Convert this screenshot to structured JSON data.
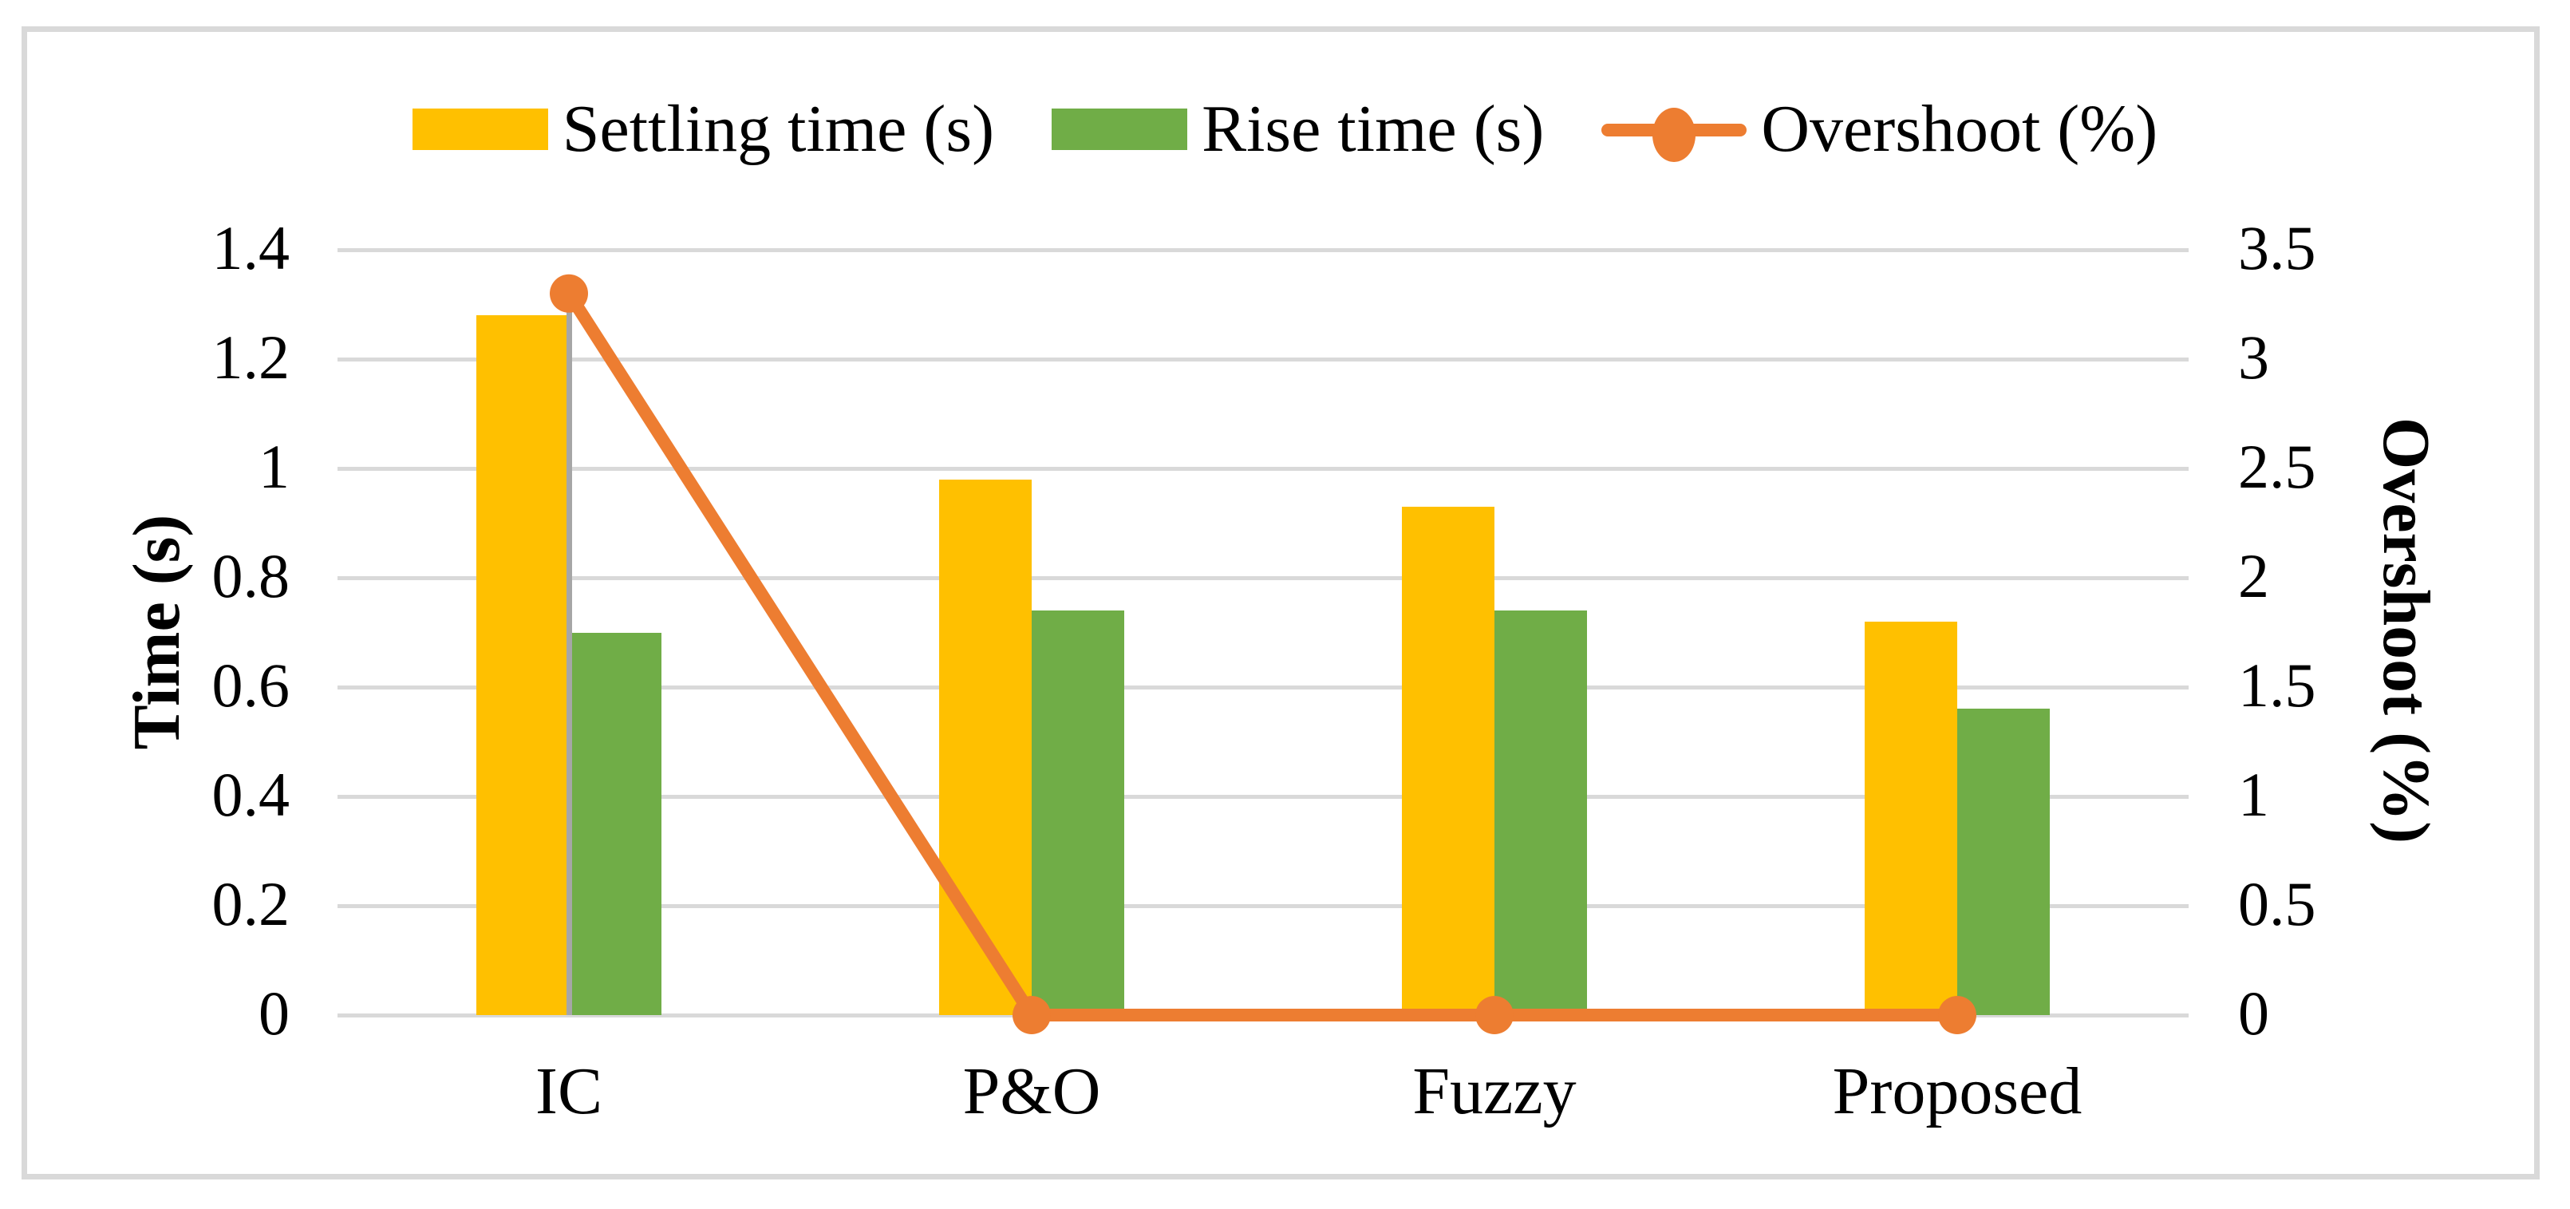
{
  "chart_data": {
    "type": "bar+line",
    "categories": [
      "IC",
      "P&O",
      "Fuzzy",
      "Proposed"
    ],
    "series": [
      {
        "name": "Settling time (s)",
        "type": "bar",
        "axis": "left",
        "color": "#FFC000",
        "values": [
          1.28,
          0.98,
          0.93,
          0.72
        ]
      },
      {
        "name": "Rise time (s)",
        "type": "bar",
        "axis": "left",
        "color": "#70AD47",
        "values": [
          0.7,
          0.74,
          0.74,
          0.56
        ]
      },
      {
        "name": "Overshoot (%)",
        "type": "line",
        "axis": "right",
        "color": "#ED7D31",
        "values": [
          3.3,
          0,
          0,
          0
        ]
      }
    ],
    "left_axis": {
      "title": "Time (s)",
      "min": 0,
      "max": 1.4,
      "step": 0.2,
      "ticks": [
        "0",
        "0.2",
        "0.4",
        "0.6",
        "0.8",
        "1",
        "1.2",
        "1.4"
      ]
    },
    "right_axis": {
      "title": "Overshoot (%)",
      "min": 0,
      "max": 3.5,
      "step": 0.5,
      "ticks": [
        "0",
        "0.5",
        "1",
        "1.5",
        "2",
        "2.5",
        "3",
        "3.5"
      ]
    },
    "legend_position": "top",
    "grid": true
  },
  "colors": {
    "settling_bar": "#FFC000",
    "rise_bar": "#70AD47",
    "overshoot_line": "#ED7D31",
    "gridline": "#D9D9D9",
    "frame_border": "#D9D9D9",
    "drop_line": "#A6A6A6",
    "text": "#000000"
  }
}
